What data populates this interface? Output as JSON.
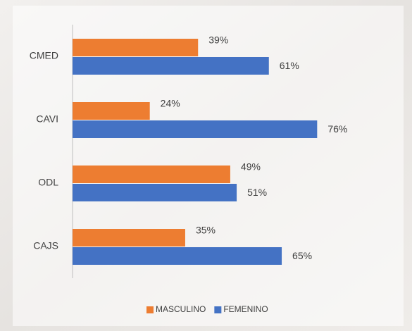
{
  "chart_data": {
    "type": "bar",
    "orientation": "horizontal",
    "categories": [
      "CMED",
      "CAVI",
      "ODL",
      "CAJS"
    ],
    "series": [
      {
        "name": "MASCULINO",
        "color": "#ed7d31",
        "values": [
          39,
          24,
          49,
          35
        ],
        "value_labels": [
          "39%",
          "24%",
          "49%",
          "35%"
        ]
      },
      {
        "name": "FEMENINO",
        "color": "#4472c4",
        "values": [
          61,
          76,
          51,
          65
        ],
        "value_labels": [
          "61%",
          "76%",
          "51%",
          "65%"
        ]
      }
    ],
    "xlim": [
      0,
      100
    ],
    "legend": "bottom"
  }
}
